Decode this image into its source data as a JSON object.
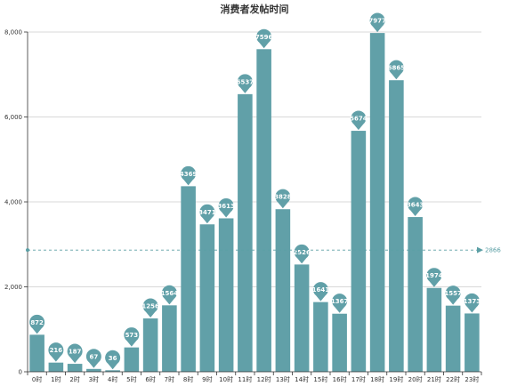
{
  "chart_data": {
    "type": "bar",
    "title": "消费者发帖时间",
    "categories": [
      "0时",
      "1时",
      "2时",
      "3时",
      "4时",
      "5时",
      "6时",
      "7时",
      "8时",
      "9时",
      "10时",
      "11时",
      "12时",
      "13时",
      "14时",
      "15时",
      "16时",
      "17时",
      "18时",
      "19时",
      "20时",
      "21时",
      "22时",
      "23时"
    ],
    "values": [
      872,
      216,
      187,
      67,
      36,
      573,
      1256,
      1564,
      4369,
      3471,
      3613,
      6537,
      7596,
      3828,
      2526,
      1641,
      1367,
      5674,
      7977,
      6865,
      3643,
      1974,
      1557,
      1373
    ],
    "value_labels": [
      "872",
      "216",
      "187",
      "67",
      "36",
      "573",
      "1256",
      "1564",
      "4369",
      "3471",
      "3613",
      "6537",
      "7596",
      "3828",
      "2526",
      "1641",
      "1367",
      "5674",
      "7977",
      "6865",
      "3643",
      "1974",
      "1557",
      "1373"
    ],
    "ylim": [
      0,
      8000
    ],
    "yticks": [
      0,
      2000,
      4000,
      6000,
      8000
    ],
    "ytick_labels": [
      "0",
      "2,000",
      "4,000",
      "6,000",
      "8,000"
    ],
    "average_line": {
      "value": 2866,
      "label": "2866"
    },
    "grid": true,
    "colors": {
      "bar": "#61a0a8",
      "grid": "#cccccc",
      "axis": "#333333",
      "average": "#5b9fa5"
    }
  }
}
